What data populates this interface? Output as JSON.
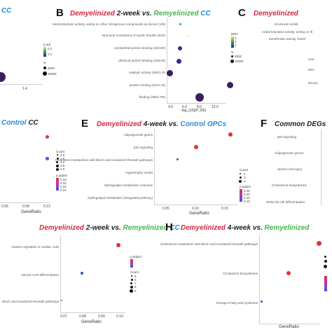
{
  "panels": {
    "A": {
      "title_part": "CC",
      "ticks": [
        "1.4"
      ],
      "legend": [
        "p.adj",
        "0.2",
        "0.1",
        "N",
        "5000",
        "10000"
      ]
    },
    "B": {
      "letter": "B",
      "title": [
        "Demyelinized",
        " 2-week ",
        "vs. ",
        "Remyelinized",
        " CC"
      ],
      "terms": [
        "oxidoreductase activity, acting on other nitrogenous compounds as donors (1/8)",
        "structural constituent of myelin sheath (3/20)",
        "cytoskeletal protein binding (30/160)",
        "identical protein binding (40/249)",
        "catalytic activity (285/1 R)",
        "protein binding (224/1 M)",
        "binding (289/1 P5)"
      ],
      "xticks": [
        "4.0",
        "6.0",
        "8.0",
        "10.0"
      ],
      "xlabel": "-log_{10}(P_DE)",
      "legend": [
        "DEN",
        "3",
        "2",
        "1",
        "N",
        "5000",
        "10000"
      ]
    },
    "C": {
      "letter": "C",
      "title": "Demyelinized",
      "terms": [
        "structural constit",
        "oxidoreductase activity, acting on th",
        "transferase activity, transf",
        "cyto",
        "iden",
        "structu"
      ]
    },
    "D": {
      "title": [
        "Control",
        " CC"
      ],
      "xticks": [
        "0.06",
        "0.08",
        "0.12"
      ],
      "xlabel": "GeneRatio",
      "legend": [
        "Count",
        "2.0",
        "2.5",
        "3.0",
        "3.5",
        "4.0",
        "p.adjust",
        "0.34",
        "0.33",
        "0.32",
        "0.31"
      ]
    },
    "E": {
      "letter": "E",
      "title": [
        "Demyelinized",
        " 4-week ",
        "vs. ",
        "Control",
        " OPCs"
      ],
      "terms": [
        "Adipogenesis genes",
        "p53 signaling",
        "Cholesterol metabolism with Bloch and Kandutsch-Russell pathways",
        "Hypertrophy model",
        "Sphingolipid metabolism overview",
        "Sphingolipid metabolism (integrated pathway)"
      ],
      "xticks": [
        "0.05",
        "0.10",
        "0.15"
      ],
      "xlabel": "GeneRatio",
      "legend": [
        "Count",
        "2",
        "3",
        "4",
        "p.adjust",
        "0.25",
        "0.20",
        "0.15",
        "0.10"
      ]
    },
    "F": {
      "letter": "F",
      "title": "Common DEGs",
      "terms": [
        "p53 signaling",
        "Adipogenesis genes",
        "Spinal cord injury",
        "Cholesterol biosynthesis",
        "White fat cell differentiation"
      ]
    },
    "G": {
      "title": [
        "Demyelinized",
        " 2-week ",
        "vs. ",
        "Remyelinized",
        " CC"
      ],
      "terms": [
        "Gastrin regulation in cardiac cells",
        "Neural crest differentiation",
        "Bloch and Kandutsch-Russell pathways"
      ],
      "xticks": [
        "0.07",
        "0.08",
        "0.09",
        "0.10"
      ],
      "xlabel": "GeneRatio",
      "legend": [
        "p.adjust",
        "Count",
        "5",
        "6",
        "7",
        "8",
        "9"
      ]
    },
    "H": {
      "letter": "H",
      "title": [
        "Demyelinized",
        " 4-week ",
        "vs. ",
        "Remyelinized"
      ],
      "terms": [
        "Cholesterol metabolism with Bloch and Kandutsch-Russell pathways",
        "Cholesterol biosynthesis",
        "Omega-9 fatty acid synthesis"
      ],
      "xlabel": "GeneRatio"
    }
  }
}
